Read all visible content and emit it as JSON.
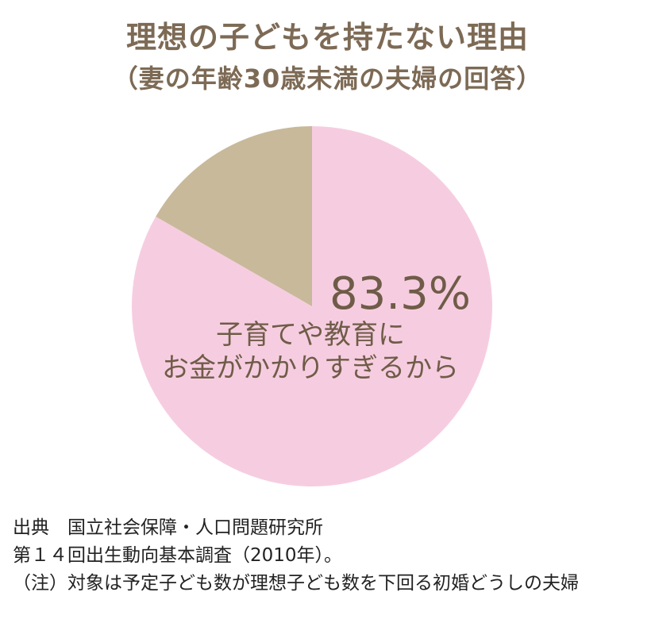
{
  "chart_data": {
    "type": "pie",
    "title": "理想の子どもを持たない理由",
    "subtitle": "（妻の年齢30歳未満の夫婦の回答）",
    "slices": [
      {
        "label_lines": [
          "子育てや教育に",
          "お金がかかりすぎるから"
        ],
        "value": 83.3,
        "value_label": "83.3%",
        "color": "#f6cde0"
      },
      {
        "label_lines": [],
        "value": 16.7,
        "value_label": "",
        "color": "#c8b99b"
      }
    ],
    "start_angle_deg": 0,
    "direction": "clockwise"
  },
  "source": {
    "line1": "出典　国立社会保障・人口問題研究所",
    "line2": "第１４回出生動向基本調査（2010年）。",
    "line3": "（注）対象は予定子ども数が理想子ども数を下回る初婚どうしの夫婦"
  },
  "colors": {
    "title": "#7d6a55",
    "label": "#6f5c48",
    "source_text": "#222222"
  }
}
